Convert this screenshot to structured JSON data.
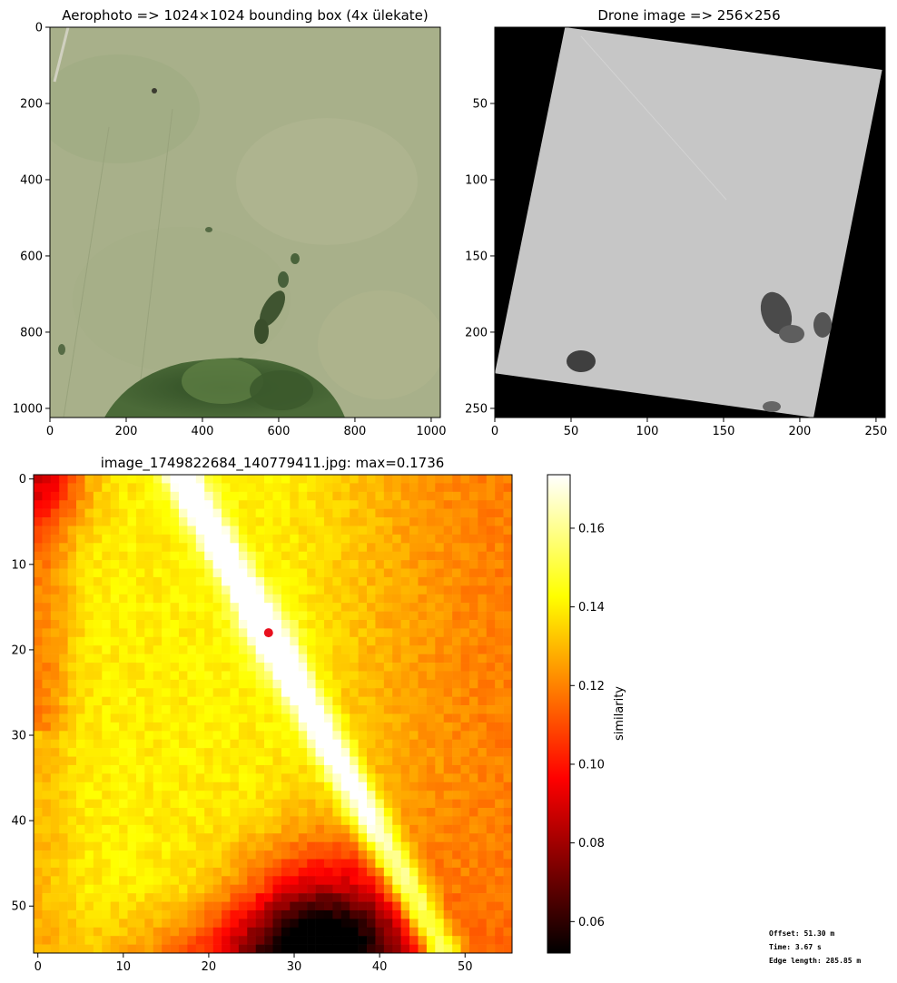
{
  "chart_data": [
    {
      "type": "image",
      "title": "Aerophoto => 1024×1024 bounding box (4x ülekate)",
      "xlim": [
        0,
        1024
      ],
      "ylim": [
        1024,
        0
      ],
      "xticks": [
        0,
        200,
        400,
        600,
        800,
        1000
      ],
      "yticks": [
        0,
        200,
        400,
        600,
        800,
        1000
      ]
    },
    {
      "type": "image",
      "title": "Drone image => 256×256",
      "xlim": [
        0,
        256
      ],
      "ylim": [
        256,
        0
      ],
      "xticks": [
        0,
        50,
        100,
        150,
        200,
        250
      ],
      "yticks": [
        50,
        100,
        150,
        200,
        250
      ],
      "image_corners": [
        [
          46,
          0
        ],
        [
          254,
          28
        ],
        [
          219,
          204
        ],
        [
          209,
          256
        ],
        [
          0,
          227
        ]
      ]
    },
    {
      "type": "heatmap",
      "title": "image_1749822684_140779411.jpg: max=0.1736",
      "xlim": [
        -0.5,
        55.5
      ],
      "ylim": [
        55.5,
        -0.5
      ],
      "xticks": [
        0,
        10,
        20,
        30,
        40,
        50
      ],
      "yticks": [
        0,
        10,
        20,
        30,
        40,
        50
      ],
      "max_point": {
        "x": 27,
        "y": 18
      },
      "colorbar": {
        "label": "similarity",
        "range": [
          0.052,
          0.1736
        ],
        "ticks": [
          0.06,
          0.08,
          0.1,
          0.12,
          0.14,
          0.16
        ],
        "tick_labels": [
          "0.06",
          "0.08",
          "0.10",
          "0.12",
          "0.14",
          "0.16"
        ]
      }
    }
  ],
  "info": {
    "offset": "Offset: 51.30 m",
    "time": "Time: 3.67 s",
    "edge": "Edge length: 285.85 m"
  }
}
